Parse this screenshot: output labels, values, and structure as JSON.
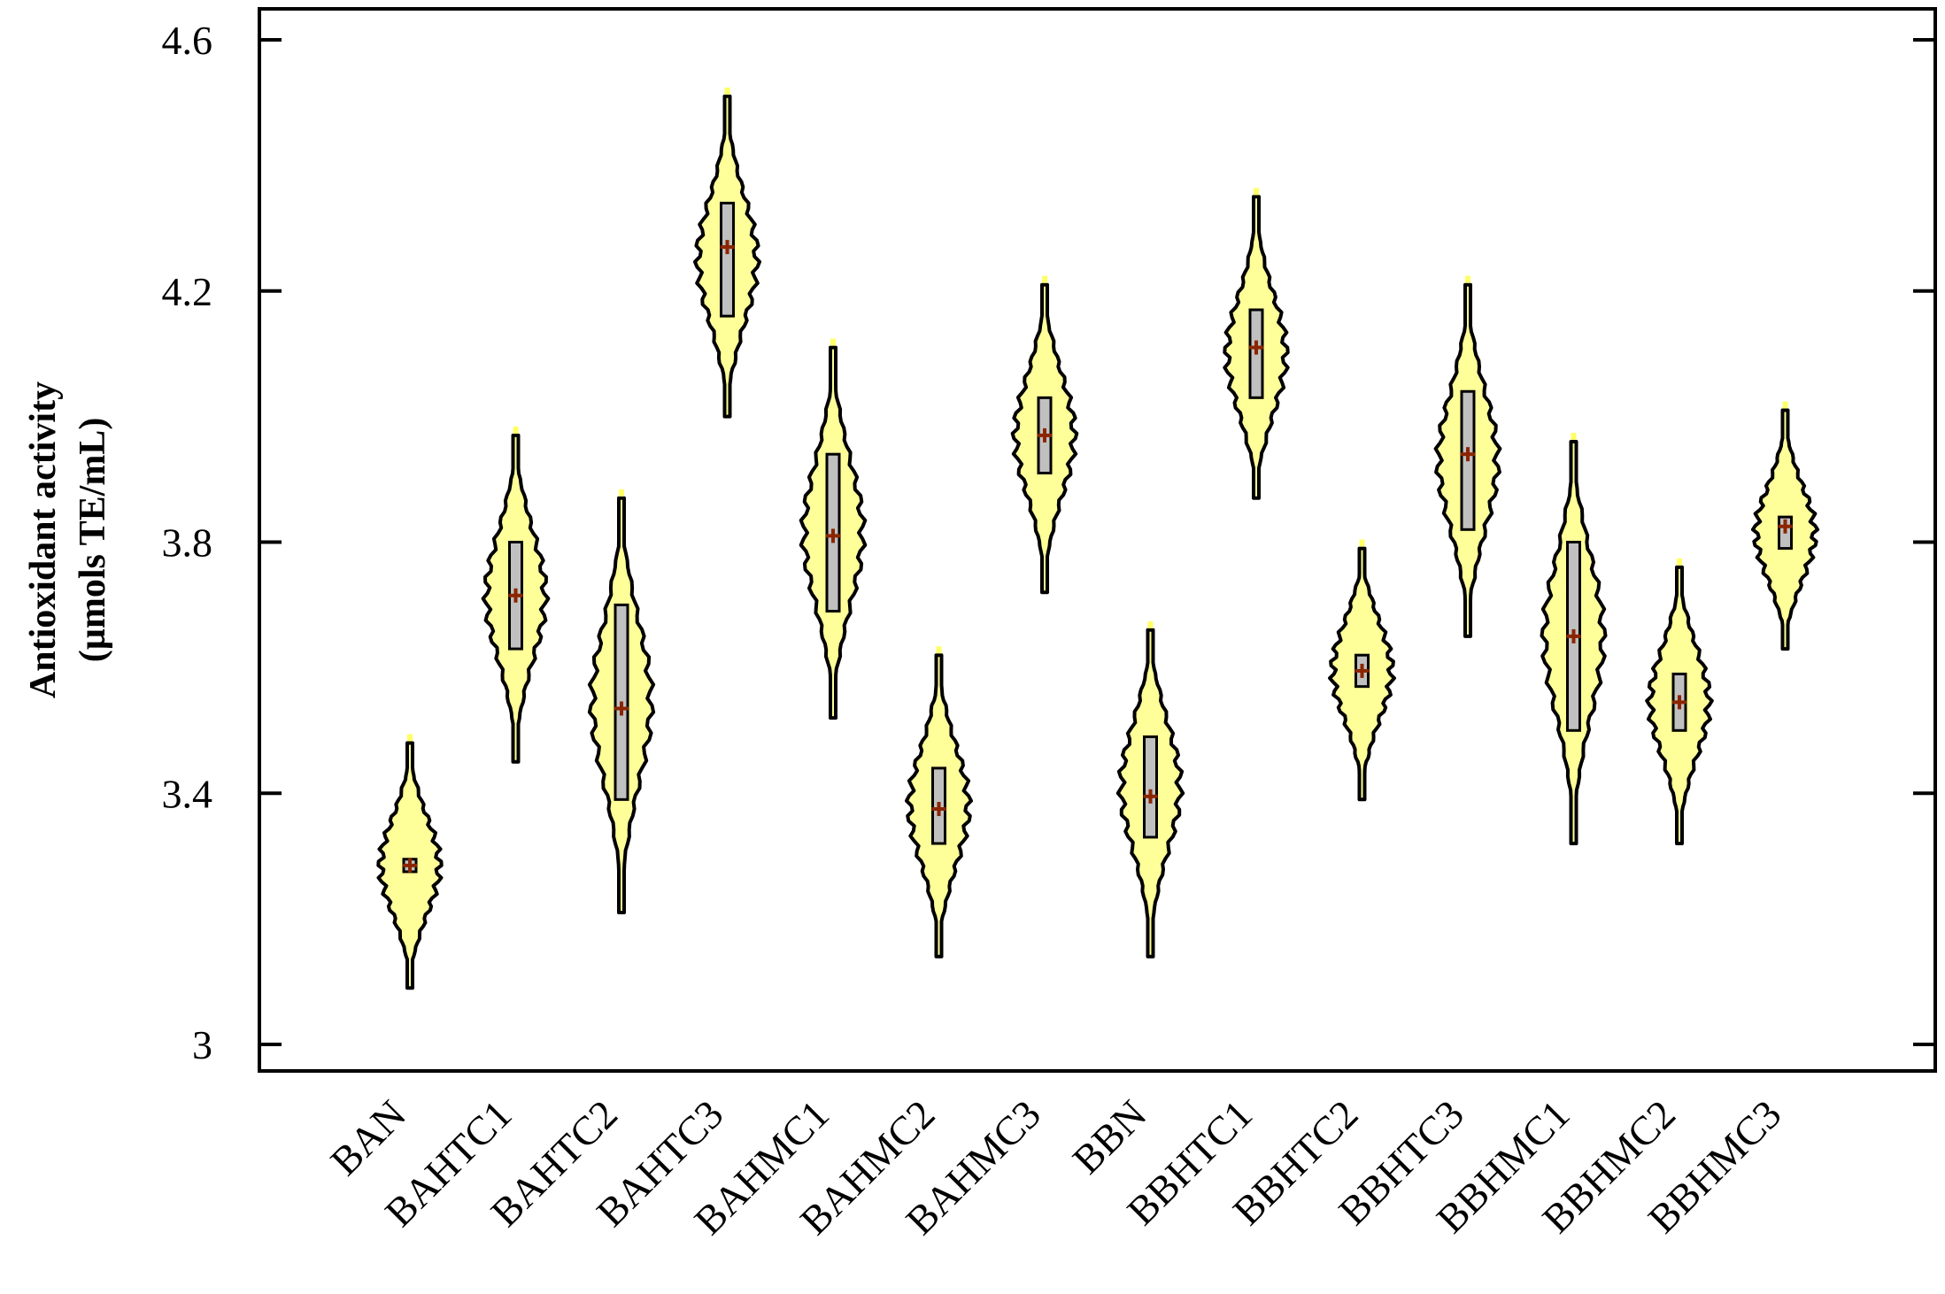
{
  "chart_data": {
    "type": "violin",
    "title": "",
    "xlabel": "",
    "ylabel_line1": "Antioxidant activity",
    "ylabel_line2": "(µmols TE/mL)",
    "ylim": [
      2.95,
      4.65
    ],
    "yticks": [
      "4.6",
      "4.2",
      "3.8",
      "3.4",
      "3"
    ],
    "ytick_values": [
      4.6,
      4.2,
      3.8,
      3.4,
      3.0
    ],
    "grid": false,
    "colors": {
      "violin_fill": "#FFFF99",
      "box_fill": "#C0C0C0",
      "mean_marker": "#8B2500",
      "outline": "#000000"
    },
    "categories": [
      "BAN",
      "BAHTC1",
      "BAHTC2",
      "BAHTC3",
      "BAHMC1",
      "BAHMC2",
      "BAHMC3",
      "BBN",
      "BBHTC1",
      "BBHTC2",
      "BBHTC3",
      "BBHMC1",
      "BBHMC2",
      "BBHMC3"
    ],
    "groups": [
      {
        "name": "BAN",
        "min": 3.09,
        "max": 3.48,
        "q1": 3.275,
        "q3": 3.295,
        "mean": 3.285
      },
      {
        "name": "BAHTC1",
        "min": 3.45,
        "max": 3.97,
        "q1": 3.63,
        "q3": 3.8,
        "mean": 3.715
      },
      {
        "name": "BAHTC2",
        "min": 3.21,
        "max": 3.87,
        "q1": 3.39,
        "q3": 3.7,
        "mean": 3.535
      },
      {
        "name": "BAHTC3",
        "min": 4.0,
        "max": 4.51,
        "q1": 4.16,
        "q3": 4.34,
        "mean": 4.27
      },
      {
        "name": "BAHMC1",
        "min": 3.52,
        "max": 4.11,
        "q1": 3.69,
        "q3": 3.94,
        "mean": 3.81
      },
      {
        "name": "BAHMC2",
        "min": 3.14,
        "max": 3.62,
        "q1": 3.32,
        "q3": 3.44,
        "mean": 3.375
      },
      {
        "name": "BAHMC3",
        "min": 3.72,
        "max": 4.21,
        "q1": 3.91,
        "q3": 4.03,
        "mean": 3.97
      },
      {
        "name": "BBN",
        "min": 3.14,
        "max": 3.66,
        "q1": 3.33,
        "q3": 3.49,
        "mean": 3.395
      },
      {
        "name": "BBHTC1",
        "min": 3.87,
        "max": 4.35,
        "q1": 4.03,
        "q3": 4.17,
        "mean": 4.11
      },
      {
        "name": "BBHTC2",
        "min": 3.39,
        "max": 3.79,
        "q1": 3.57,
        "q3": 3.62,
        "mean": 3.595
      },
      {
        "name": "BBHTC3",
        "min": 3.65,
        "max": 4.21,
        "q1": 3.82,
        "q3": 4.04,
        "mean": 3.94
      },
      {
        "name": "BBHMC1",
        "min": 3.32,
        "max": 3.96,
        "q1": 3.5,
        "q3": 3.8,
        "mean": 3.65
      },
      {
        "name": "BBHMC2",
        "min": 3.32,
        "max": 3.76,
        "q1": 3.5,
        "q3": 3.59,
        "mean": 3.545
      },
      {
        "name": "BBHMC3",
        "min": 3.63,
        "max": 4.01,
        "q1": 3.79,
        "q3": 3.84,
        "mean": 3.825
      }
    ]
  }
}
